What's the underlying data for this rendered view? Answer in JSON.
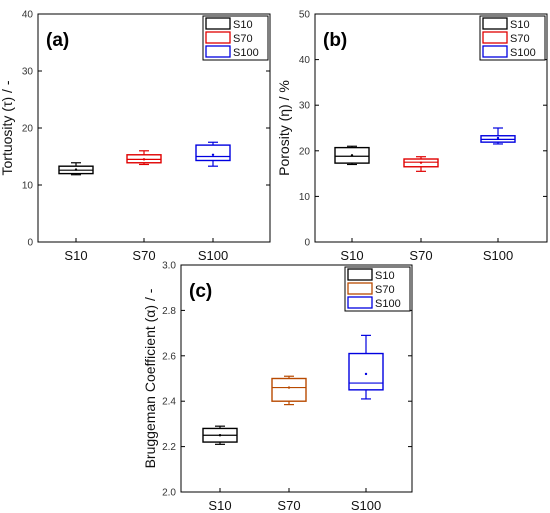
{
  "chart_data": [
    {
      "type": "box",
      "panel_label": "(a)",
      "ylabel": "Tortuosity (τ) / -",
      "ylim": [
        0,
        40
      ],
      "yticks": [
        "0",
        "10",
        "20",
        "30",
        "40"
      ],
      "categories": [
        "S10",
        "S70",
        "S100"
      ],
      "legend": [
        "S10",
        "S70",
        "S100"
      ],
      "colors": [
        "#000000",
        "#e00000",
        "#0000e0"
      ],
      "boxes": [
        {
          "name": "S10",
          "min": 11.8,
          "q1": 12.0,
          "median": 12.6,
          "q3": 13.3,
          "max": 13.9,
          "mean": 12.7
        },
        {
          "name": "S70",
          "min": 13.6,
          "q1": 13.9,
          "median": 14.5,
          "q3": 15.3,
          "max": 16.0,
          "mean": 14.5
        },
        {
          "name": "S100",
          "min": 13.3,
          "q1": 14.3,
          "median": 15.0,
          "q3": 17.0,
          "max": 17.5,
          "mean": 15.3
        }
      ]
    },
    {
      "type": "box",
      "panel_label": "(b)",
      "ylabel": "Porosity (η) / %",
      "ylim": [
        0,
        50
      ],
      "yticks": [
        "0",
        "10",
        "20",
        "30",
        "40",
        "50"
      ],
      "categories": [
        "S10",
        "S70",
        "S100"
      ],
      "legend": [
        "S10",
        "S70",
        "S100"
      ],
      "colors": [
        "#000000",
        "#e00000",
        "#0000e0"
      ],
      "boxes": [
        {
          "name": "S10",
          "min": 17.0,
          "q1": 17.3,
          "median": 18.8,
          "q3": 20.7,
          "max": 21.0,
          "mean": 19.0
        },
        {
          "name": "S70",
          "min": 15.5,
          "q1": 16.5,
          "median": 17.5,
          "q3": 18.2,
          "max": 18.7,
          "mean": 17.4
        },
        {
          "name": "S100",
          "min": 21.5,
          "q1": 21.9,
          "median": 22.5,
          "q3": 23.3,
          "max": 25.0,
          "mean": 22.8
        }
      ]
    },
    {
      "type": "box",
      "panel_label": "(c)",
      "ylabel": "Bruggeman Coefficient (α) / -",
      "ylim": [
        2.0,
        3.0
      ],
      "yticks": [
        "2.0",
        "2.2",
        "2.4",
        "2.6",
        "2.8",
        "3.0"
      ],
      "categories": [
        "S10",
        "S70",
        "S100"
      ],
      "legend": [
        "S10",
        "S70",
        "S100"
      ],
      "colors": [
        "#000000",
        "#b84a00",
        "#0000e0"
      ],
      "boxes": [
        {
          "name": "S10",
          "min": 2.21,
          "q1": 2.22,
          "median": 2.25,
          "q3": 2.28,
          "max": 2.29,
          "mean": 2.25
        },
        {
          "name": "S70",
          "min": 2.385,
          "q1": 2.4,
          "median": 2.46,
          "q3": 2.5,
          "max": 2.51,
          "mean": 2.46
        },
        {
          "name": "S100",
          "min": 2.41,
          "q1": 2.45,
          "median": 2.48,
          "q3": 2.61,
          "max": 2.69,
          "mean": 2.52
        }
      ]
    }
  ]
}
